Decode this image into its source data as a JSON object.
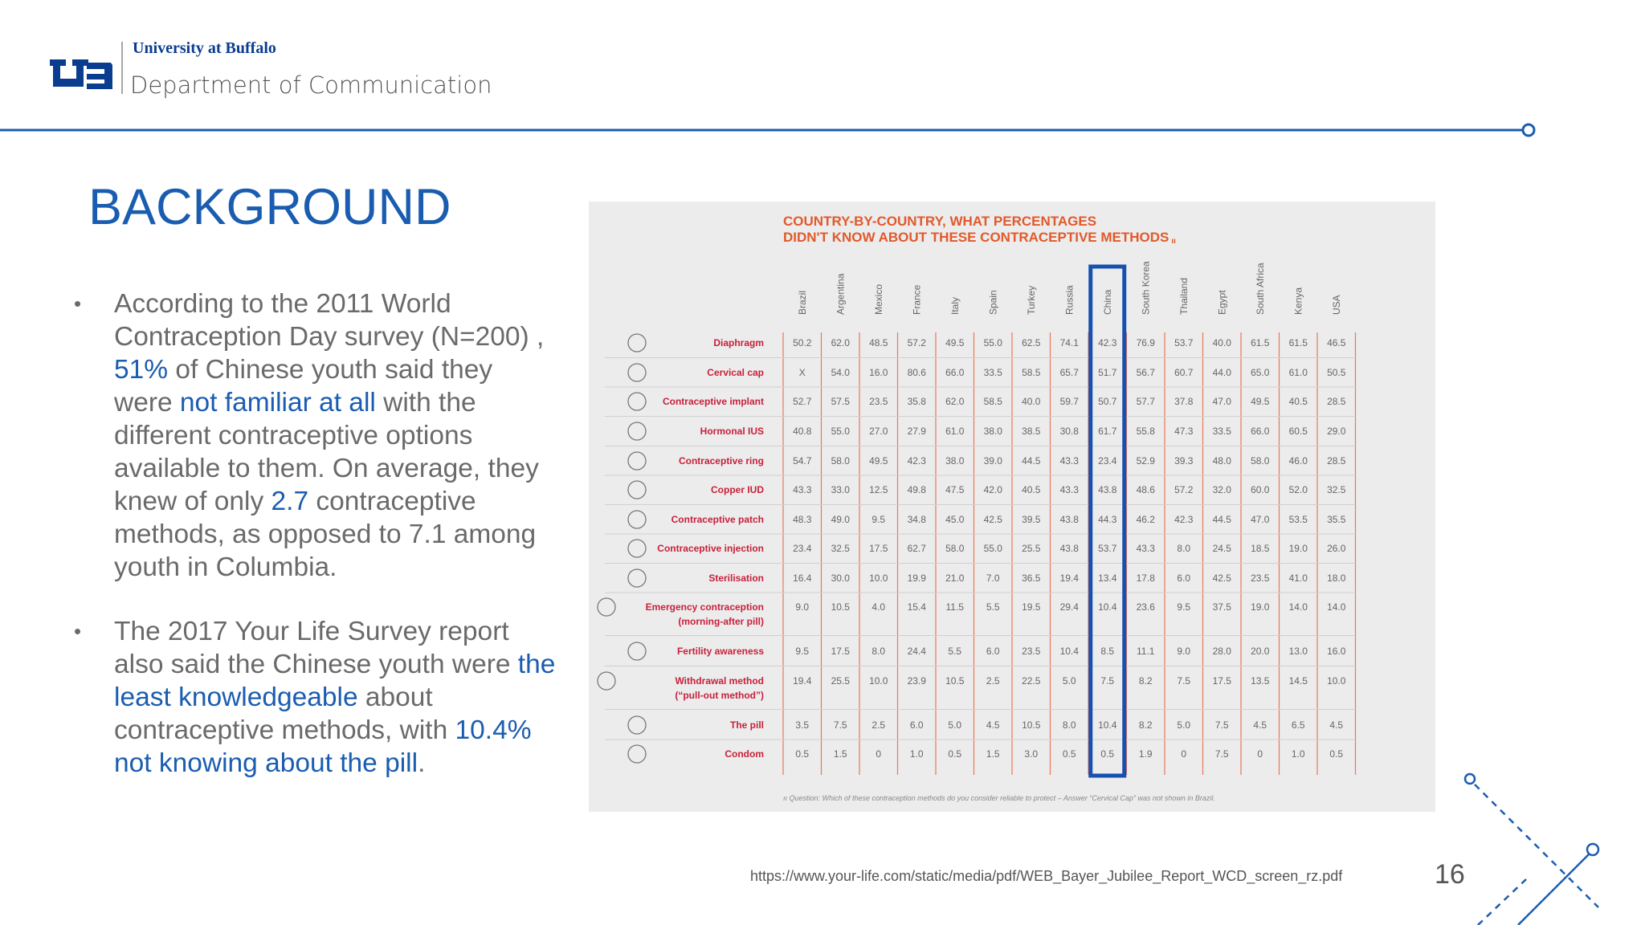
{
  "header": {
    "university": "University at Buffalo",
    "department": "Department of Communication"
  },
  "title": "BACKGROUND",
  "bullets": [
    [
      {
        "text": "According to the 2011 World Contraception Day survey (N=200) , ",
        "highlight": false
      },
      {
        "text": "51%",
        "highlight": true
      },
      {
        "text": " of Chinese youth said they were ",
        "highlight": false
      },
      {
        "text": "not familiar at all",
        "highlight": true
      },
      {
        "text": " with the different contraceptive options available to them. On average, they knew of only ",
        "highlight": false
      },
      {
        "text": "2.7",
        "highlight": true
      },
      {
        "text": " contraceptive methods, as opposed to 7.1 among youth in Columbia.",
        "highlight": false
      }
    ],
    [
      {
        "text": "The 2017 Your Life Survey report also said the Chinese youth were ",
        "highlight": false
      },
      {
        "text": "the least knowledgeable",
        "highlight": true
      },
      {
        "text": " about contraceptive methods, with ",
        "highlight": false
      },
      {
        "text": "10.4% not knowing about the pill",
        "highlight": true
      },
      {
        "text": ".",
        "highlight": false
      }
    ]
  ],
  "table": {
    "title": [
      "COUNTRY-BY-COUNTRY, WHAT PERCENTAGES",
      "DIDN'T KNOW ABOUT THESE CONTRACEPTIVE METHODS"
    ],
    "title_marker": "ıı",
    "highlighted_column": "China",
    "columns": [
      "Brazil",
      "Argentina",
      "Mexico",
      "France",
      "Italy",
      "Spain",
      "Turkey",
      "Russia",
      "China",
      "South Korea",
      "Thailand",
      "Egypt",
      "South Africa",
      "Kenya",
      "USA"
    ],
    "rows": [
      {
        "method": [
          "Diaphragm"
        ],
        "cells": [
          "50.2",
          "62.0",
          "48.5",
          "57.2",
          "49.5",
          "55.0",
          "62.5",
          "74.1",
          "42.3",
          "76.9",
          "53.7",
          "40.0",
          "61.5",
          "61.5",
          "46.5"
        ]
      },
      {
        "method": [
          "Cervical cap"
        ],
        "cells": [
          "X",
          "54.0",
          "16.0",
          "80.6",
          "66.0",
          "33.5",
          "58.5",
          "65.7",
          "51.7",
          "56.7",
          "60.7",
          "44.0",
          "65.0",
          "61.0",
          "50.5"
        ]
      },
      {
        "method": [
          "Contraceptive implant"
        ],
        "cells": [
          "52.7",
          "57.5",
          "23.5",
          "35.8",
          "62.0",
          "58.5",
          "40.0",
          "59.7",
          "50.7",
          "57.7",
          "37.8",
          "47.0",
          "49.5",
          "40.5",
          "28.5"
        ]
      },
      {
        "method": [
          "Hormonal IUS"
        ],
        "cells": [
          "40.8",
          "55.0",
          "27.0",
          "27.9",
          "61.0",
          "38.0",
          "38.5",
          "30.8",
          "61.7",
          "55.8",
          "47.3",
          "33.5",
          "66.0",
          "60.5",
          "29.0"
        ]
      },
      {
        "method": [
          "Contraceptive ring"
        ],
        "cells": [
          "54.7",
          "58.0",
          "49.5",
          "42.3",
          "38.0",
          "39.0",
          "44.5",
          "43.3",
          "23.4",
          "52.9",
          "39.3",
          "48.0",
          "58.0",
          "46.0",
          "28.5"
        ]
      },
      {
        "method": [
          "Copper IUD"
        ],
        "cells": [
          "43.3",
          "33.0",
          "12.5",
          "49.8",
          "47.5",
          "42.0",
          "40.5",
          "43.3",
          "43.8",
          "48.6",
          "57.2",
          "32.0",
          "60.0",
          "52.0",
          "32.5"
        ]
      },
      {
        "method": [
          "Contraceptive patch"
        ],
        "cells": [
          "48.3",
          "49.0",
          "9.5",
          "34.8",
          "45.0",
          "42.5",
          "39.5",
          "43.8",
          "44.3",
          "46.2",
          "42.3",
          "44.5",
          "47.0",
          "53.5",
          "35.5"
        ]
      },
      {
        "method": [
          "Contraceptive injection"
        ],
        "cells": [
          "23.4",
          "32.5",
          "17.5",
          "62.7",
          "58.0",
          "55.0",
          "25.5",
          "43.8",
          "53.7",
          "43.3",
          "8.0",
          "24.5",
          "18.5",
          "19.0",
          "26.0"
        ]
      },
      {
        "method": [
          "Sterilisation"
        ],
        "cells": [
          "16.4",
          "30.0",
          "10.0",
          "19.9",
          "21.0",
          "7.0",
          "36.5",
          "19.4",
          "13.4",
          "17.8",
          "6.0",
          "42.5",
          "23.5",
          "41.0",
          "18.0"
        ]
      },
      {
        "method": [
          "Emergency contraception",
          "(morning-after pill)"
        ],
        "cells": [
          "9.0",
          "10.5",
          "4.0",
          "15.4",
          "11.5",
          "5.5",
          "19.5",
          "29.4",
          "10.4",
          "23.6",
          "9.5",
          "37.5",
          "19.0",
          "14.0",
          "14.0"
        ]
      },
      {
        "method": [
          "Fertility awareness"
        ],
        "cells": [
          "9.5",
          "17.5",
          "8.0",
          "24.4",
          "5.5",
          "6.0",
          "23.5",
          "10.4",
          "8.5",
          "11.1",
          "9.0",
          "28.0",
          "20.0",
          "13.0",
          "16.0"
        ]
      },
      {
        "method": [
          "Withdrawal method",
          "(“pull-out method”)"
        ],
        "cells": [
          "19.4",
          "25.5",
          "10.0",
          "23.9",
          "10.5",
          "2.5",
          "22.5",
          "5.0",
          "7.5",
          "8.2",
          "7.5",
          "17.5",
          "13.5",
          "14.5",
          "10.0"
        ]
      },
      {
        "method": [
          "The pill"
        ],
        "cells": [
          "3.5",
          "7.5",
          "2.5",
          "6.0",
          "5.0",
          "4.5",
          "10.5",
          "8.0",
          "10.4",
          "8.2",
          "5.0",
          "7.5",
          "4.5",
          "6.5",
          "4.5"
        ]
      },
      {
        "method": [
          "Condom"
        ],
        "cells": [
          "0.5",
          "1.5",
          "0",
          "1.0",
          "0.5",
          "1.5",
          "3.0",
          "0.5",
          "0.5",
          "1.9",
          "0",
          "7.5",
          "0",
          "1.0",
          "0.5"
        ]
      }
    ],
    "footnote": "ıı  Question: Which of these contraception methods do you consider reliable to protect – Answer “Cervical Cap” was not shown in Brazil."
  },
  "source_url": "https://www.your-life.com/static/media/pdf/WEB_Bayer_Jubilee_Report_WCD_screen_rz.pdf",
  "page_number": "16"
}
